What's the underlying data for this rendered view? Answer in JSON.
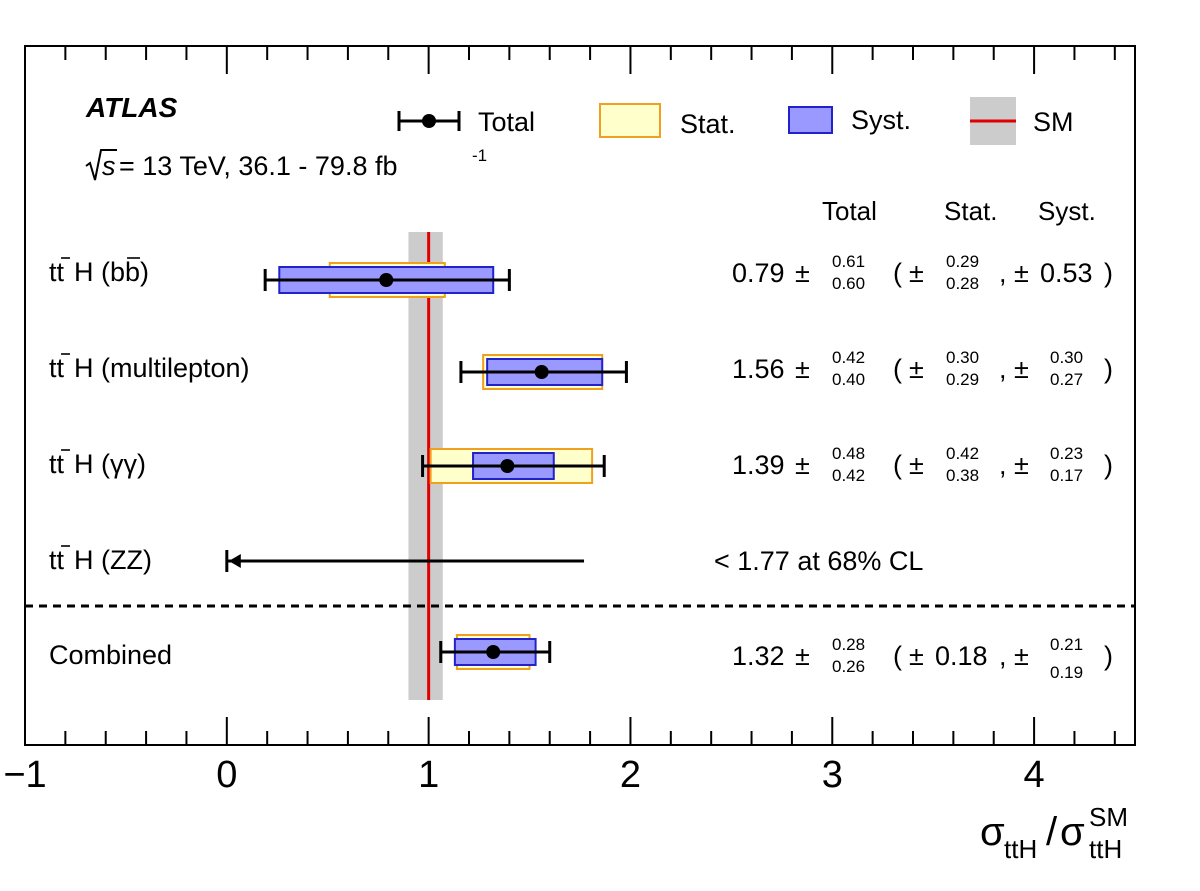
{
  "chart_data": {
    "type": "forest",
    "experiment": "ATLAS",
    "energy_label": "= 13 TeV, 36.1 - 79.8 fb",
    "sqrt_s_label": "s",
    "lumi_exponent": "-1",
    "xlabel": {
      "sigma": "σ",
      "sub1": "ttH",
      "sup2": "SM",
      "sub2": "ttH",
      "slash": "/"
    },
    "xlim": [
      -1,
      4.5
    ],
    "x_ticks": [
      -1,
      0,
      1,
      2,
      3,
      4
    ],
    "x_tick_labels": [
      "−1",
      "0",
      "1",
      "2",
      "3",
      "4"
    ],
    "sm_value": 1.0,
    "sm_band": [
      0.9,
      1.07
    ],
    "legend": {
      "total": "Total",
      "stat": "Stat.",
      "syst": "Syst.",
      "sm": "SM"
    },
    "columns": {
      "total": "Total",
      "stat": "Stat.",
      "syst": "Syst."
    },
    "colors": {
      "stat_fill": "#ffffcc",
      "stat_edge": "#f0a020",
      "syst_fill": "#9999ff",
      "syst_edge": "#2222cc",
      "sm_line": "#e00000",
      "sm_band": "#cccccc"
    },
    "measurements": [
      {
        "channel": "(bb)",
        "central": 0.79,
        "total_up": 0.61,
        "total_dn": 0.6,
        "stat_up": 0.29,
        "stat_dn": 0.28,
        "syst_up": 0.53,
        "syst_dn": 0.53,
        "central_text": "0.79",
        "total_up_text": "0.61",
        "total_dn_text": "0.60",
        "stat_up_text": "0.29",
        "stat_dn_text": "0.28",
        "syst_sym_text": "0.53"
      },
      {
        "channel": "(multilepton)",
        "central": 1.56,
        "total_up": 0.42,
        "total_dn": 0.4,
        "stat_up": 0.3,
        "stat_dn": 0.29,
        "syst_up": 0.3,
        "syst_dn": 0.27,
        "central_text": "1.56",
        "total_up_text": "0.42",
        "total_dn_text": "0.40",
        "stat_up_text": "0.30",
        "stat_dn_text": "0.29",
        "syst_up_text": "0.30",
        "syst_dn_text": "0.27"
      },
      {
        "channel": "(γγ)",
        "central": 1.39,
        "total_up": 0.48,
        "total_dn": 0.42,
        "stat_up": 0.42,
        "stat_dn": 0.38,
        "syst_up": 0.23,
        "syst_dn": 0.17,
        "central_text": "1.39",
        "total_up_text": "0.48",
        "total_dn_text": "0.42",
        "stat_up_text": "0.42",
        "stat_dn_text": "0.38",
        "syst_up_text": "0.23",
        "syst_dn_text": "0.17"
      },
      {
        "channel": "(ZZ)",
        "limit": 1.77,
        "limit_text": "< 1.77 at 68% CL"
      }
    ],
    "combined": {
      "channel": "Combined",
      "central": 1.32,
      "total_up": 0.28,
      "total_dn": 0.26,
      "stat_up": 0.18,
      "stat_dn": 0.18,
      "syst_up": 0.21,
      "syst_dn": 0.19,
      "central_text": "1.32",
      "total_up_text": "0.28",
      "total_dn_text": "0.26",
      "stat_sym_text": "0.18",
      "syst_up_text": "0.21",
      "syst_dn_text": "0.19"
    }
  }
}
